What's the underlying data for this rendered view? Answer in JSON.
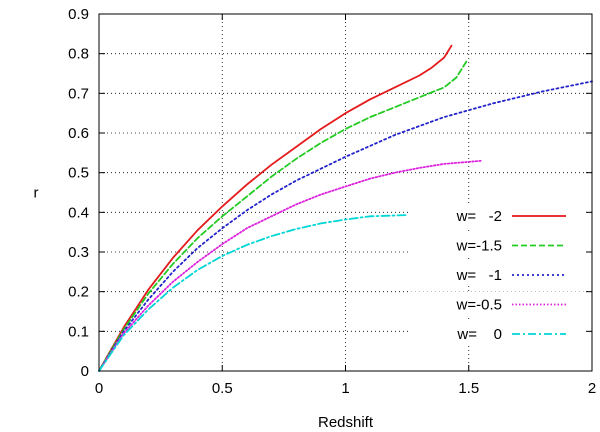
{
  "chart_data": {
    "type": "line",
    "title": "",
    "xlabel": "Redshift",
    "ylabel": "r",
    "xlim": [
      0,
      2
    ],
    "ylim": [
      0,
      0.9
    ],
    "xticks": [
      0,
      0.5,
      1,
      1.5,
      2
    ],
    "xtick_labels": [
      "0",
      "0.5",
      "1",
      "1.5",
      "2"
    ],
    "yticks": [
      0,
      0.1,
      0.2,
      0.3,
      0.4,
      0.5,
      0.6,
      0.7,
      0.8,
      0.9
    ],
    "ytick_labels": [
      "0",
      "0.1",
      "0.2",
      "0.3",
      "0.4",
      "0.5",
      "0.6",
      "0.7",
      "0.8",
      "0.9"
    ],
    "grid": "dotted",
    "legend_position": "bottom-right",
    "series": [
      {
        "name": "w=   -2",
        "color": "#e41a1c",
        "dash": "solid",
        "points": [
          [
            0,
            0
          ],
          [
            0.05,
            0.055
          ],
          [
            0.1,
            0.11
          ],
          [
            0.2,
            0.205
          ],
          [
            0.3,
            0.285
          ],
          [
            0.4,
            0.355
          ],
          [
            0.5,
            0.415
          ],
          [
            0.6,
            0.47
          ],
          [
            0.7,
            0.52
          ],
          [
            0.8,
            0.565
          ],
          [
            0.9,
            0.61
          ],
          [
            1.0,
            0.65
          ],
          [
            1.1,
            0.685
          ],
          [
            1.2,
            0.715
          ],
          [
            1.3,
            0.745
          ],
          [
            1.35,
            0.765
          ],
          [
            1.4,
            0.79
          ],
          [
            1.43,
            0.82
          ]
        ]
      },
      {
        "name": "w=-1.5",
        "color": "#22cc22",
        "dash": "dashed",
        "points": [
          [
            0,
            0
          ],
          [
            0.05,
            0.053
          ],
          [
            0.1,
            0.105
          ],
          [
            0.2,
            0.195
          ],
          [
            0.3,
            0.27
          ],
          [
            0.4,
            0.335
          ],
          [
            0.5,
            0.39
          ],
          [
            0.6,
            0.44
          ],
          [
            0.7,
            0.49
          ],
          [
            0.8,
            0.535
          ],
          [
            0.9,
            0.575
          ],
          [
            1.0,
            0.61
          ],
          [
            1.1,
            0.64
          ],
          [
            1.2,
            0.665
          ],
          [
            1.3,
            0.69
          ],
          [
            1.4,
            0.715
          ],
          [
            1.45,
            0.74
          ],
          [
            1.49,
            0.78
          ]
        ]
      },
      {
        "name": "w=   -1",
        "color": "#2222cc",
        "dash": "dotted",
        "points": [
          [
            0,
            0
          ],
          [
            0.05,
            0.05
          ],
          [
            0.1,
            0.1
          ],
          [
            0.2,
            0.18
          ],
          [
            0.3,
            0.25
          ],
          [
            0.4,
            0.31
          ],
          [
            0.5,
            0.36
          ],
          [
            0.6,
            0.405
          ],
          [
            0.7,
            0.445
          ],
          [
            0.8,
            0.48
          ],
          [
            0.9,
            0.51
          ],
          [
            1.0,
            0.54
          ],
          [
            1.2,
            0.595
          ],
          [
            1.4,
            0.64
          ],
          [
            1.6,
            0.675
          ],
          [
            1.8,
            0.705
          ],
          [
            2.0,
            0.73
          ]
        ]
      },
      {
        "name": "w=-0.5",
        "color": "#dd22dd",
        "dash": "dotted-fine",
        "points": [
          [
            0,
            0
          ],
          [
            0.05,
            0.048
          ],
          [
            0.1,
            0.095
          ],
          [
            0.2,
            0.165
          ],
          [
            0.3,
            0.225
          ],
          [
            0.4,
            0.275
          ],
          [
            0.5,
            0.32
          ],
          [
            0.6,
            0.36
          ],
          [
            0.7,
            0.39
          ],
          [
            0.8,
            0.42
          ],
          [
            0.9,
            0.445
          ],
          [
            1.0,
            0.465
          ],
          [
            1.1,
            0.485
          ],
          [
            1.2,
            0.5
          ],
          [
            1.3,
            0.512
          ],
          [
            1.4,
            0.522
          ],
          [
            1.55,
            0.53
          ]
        ]
      },
      {
        "name": "w=    0",
        "color": "#00d6d6",
        "dash": "dash-dot",
        "points": [
          [
            0,
            0
          ],
          [
            0.05,
            0.045
          ],
          [
            0.1,
            0.09
          ],
          [
            0.2,
            0.155
          ],
          [
            0.3,
            0.21
          ],
          [
            0.4,
            0.255
          ],
          [
            0.5,
            0.29
          ],
          [
            0.6,
            0.318
          ],
          [
            0.7,
            0.34
          ],
          [
            0.8,
            0.358
          ],
          [
            0.9,
            0.372
          ],
          [
            1.0,
            0.382
          ],
          [
            1.1,
            0.39
          ],
          [
            1.25,
            0.393
          ]
        ]
      }
    ]
  }
}
